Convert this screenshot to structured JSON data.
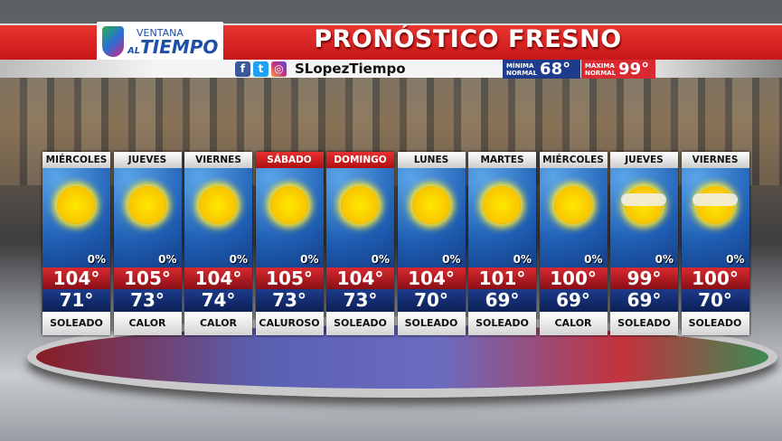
{
  "header": {
    "logo_line1": "VENTANA",
    "logo_line2_prefix": "AL",
    "logo_line2": "TIEMPO",
    "title": "PRONÓSTICO FRESNO",
    "social_icons": [
      "facebook-icon",
      "twitter-icon",
      "instagram-icon"
    ],
    "handle": "SLopezTiempo",
    "min_label1": "MÍNIMA",
    "min_label2": "NORMAL",
    "min_value": "68°",
    "max_label1": "MÁXIMA",
    "max_label2": "NORMAL",
    "max_value": "99°"
  },
  "colors": {
    "red": "#d82a30",
    "blue": "#1e3c8c",
    "sun": "#ffe800"
  },
  "days": [
    {
      "day": "MIÉRCOLES",
      "icon": "sun-icon",
      "pop": "0%",
      "high": "104°",
      "low": "71°",
      "cond": "SOLEADO",
      "weekend": false
    },
    {
      "day": "JUEVES",
      "icon": "sun-icon",
      "pop": "0%",
      "high": "105°",
      "low": "73°",
      "cond": "CALOR",
      "weekend": false
    },
    {
      "day": "VIERNES",
      "icon": "sun-icon",
      "pop": "0%",
      "high": "104°",
      "low": "74°",
      "cond": "CALOR",
      "weekend": false
    },
    {
      "day": "SÁBADO",
      "icon": "sun-icon",
      "pop": "0%",
      "high": "105°",
      "low": "73°",
      "cond": "CALUROSO",
      "weekend": true
    },
    {
      "day": "DOMINGO",
      "icon": "sun-icon",
      "pop": "0%",
      "high": "104°",
      "low": "73°",
      "cond": "SOLEADO",
      "weekend": true
    },
    {
      "day": "LUNES",
      "icon": "sun-icon",
      "pop": "0%",
      "high": "104°",
      "low": "70°",
      "cond": "SOLEADO",
      "weekend": false
    },
    {
      "day": "MARTES",
      "icon": "sun-icon",
      "pop": "0%",
      "high": "101°",
      "low": "69°",
      "cond": "SOLEADO",
      "weekend": false
    },
    {
      "day": "MIÉRCOLES",
      "icon": "sun-icon",
      "pop": "0%",
      "high": "100°",
      "low": "69°",
      "cond": "CALOR",
      "weekend": false
    },
    {
      "day": "JUEVES",
      "icon": "sun-haze-icon",
      "pop": "0%",
      "high": "99°",
      "low": "69°",
      "cond": "SOLEADO",
      "weekend": false
    },
    {
      "day": "VIERNES",
      "icon": "sun-haze-icon",
      "pop": "0%",
      "high": "100°",
      "low": "70°",
      "cond": "SOLEADO",
      "weekend": false
    }
  ]
}
